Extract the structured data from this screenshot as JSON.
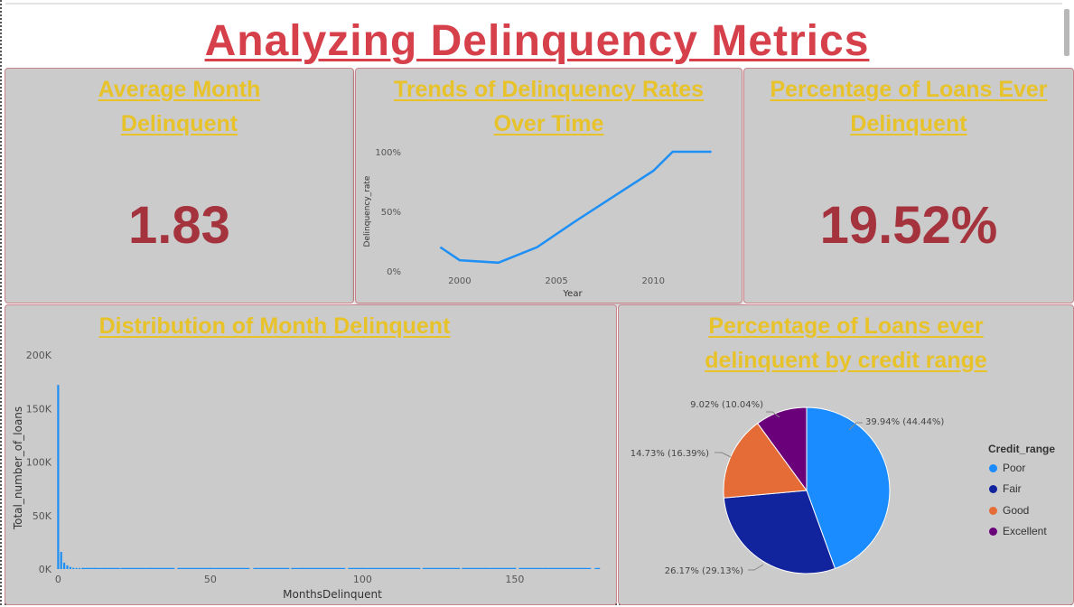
{
  "title": "Analyzing Delinquency Metrics",
  "cards": {
    "avg_month": {
      "title": "Average Month Delinquent",
      "value": "1.83"
    },
    "pct_ever": {
      "title": "Percentage of Loans Ever Delinquent",
      "value": "19.52%"
    }
  },
  "trend": {
    "title": "Trends of Delinquency Rates Over Time",
    "xlabel": "Year",
    "ylabel": "Delinquency_rate",
    "y_ticks": [
      "100%",
      "50%",
      "0%"
    ],
    "x_ticks": [
      "2000",
      "2005",
      "2010"
    ]
  },
  "distribution": {
    "title": "Distribution of Month Delinquent",
    "xlabel": "MonthsDelinquent",
    "ylabel": "Total_number_of_loans",
    "y_ticks": [
      "200K",
      "150K",
      "100K",
      "50K",
      "0K"
    ],
    "x_ticks": [
      "0",
      "50",
      "100",
      "150"
    ]
  },
  "pie": {
    "title": "Percentage of Loans ever delinquent by credit range",
    "legend_title": "Credit_range",
    "labels": {
      "poor": "39.94% (44.44%)",
      "fair": "26.17% (29.13%)",
      "good": "14.73% (16.39%)",
      "excellent": "9.02% (10.04%)"
    },
    "legend": [
      "Poor",
      "Fair",
      "Good",
      "Excellent"
    ]
  },
  "colors": {
    "title": "#d6404a",
    "tile_title": "#e8c229",
    "kpi": "#a4333d",
    "line": "#1e8ff5",
    "poor": "#1a8cff",
    "fair": "#12239e",
    "good": "#e66c37",
    "excellent": "#6b007b"
  },
  "chart_data": [
    {
      "type": "line",
      "title": "Trends of Delinquency Rates Over Time",
      "xlabel": "Year",
      "ylabel": "Delinquency_rate",
      "x": [
        1999,
        2000,
        2002,
        2004,
        2006,
        2008,
        2010,
        2011,
        2013
      ],
      "values": [
        0.2,
        0.09,
        0.07,
        0.2,
        0.42,
        0.63,
        0.84,
        1.0,
        1.0
      ],
      "ylim": [
        0,
        1
      ],
      "xlim": [
        1998,
        2014
      ]
    },
    {
      "type": "bar",
      "title": "Distribution of Month Delinquent",
      "xlabel": "MonthsDelinquent",
      "ylabel": "Total_number_of_loans",
      "x": [
        0,
        1,
        2,
        3,
        4,
        5,
        6,
        7,
        8,
        10,
        12,
        15,
        20,
        30,
        50,
        80,
        100,
        120,
        140,
        150,
        160,
        170
      ],
      "values": [
        172000,
        16000,
        6000,
        3500,
        2000,
        1200,
        800,
        600,
        500,
        400,
        300,
        250,
        200,
        150,
        100,
        80,
        60,
        40,
        30,
        30,
        20,
        20
      ],
      "ylim": [
        0,
        200000
      ],
      "xlim": [
        -1,
        180
      ]
    },
    {
      "type": "pie",
      "title": "Percentage of Loans ever delinquent by credit range",
      "categories": [
        "Poor",
        "Fair",
        "Good",
        "Excellent"
      ],
      "values": [
        44.44,
        29.13,
        16.39,
        10.04
      ],
      "labels": [
        "39.94% (44.44%)",
        "26.17% (29.13%)",
        "14.73% (16.39%)",
        "9.02% (10.04%)"
      ]
    }
  ]
}
